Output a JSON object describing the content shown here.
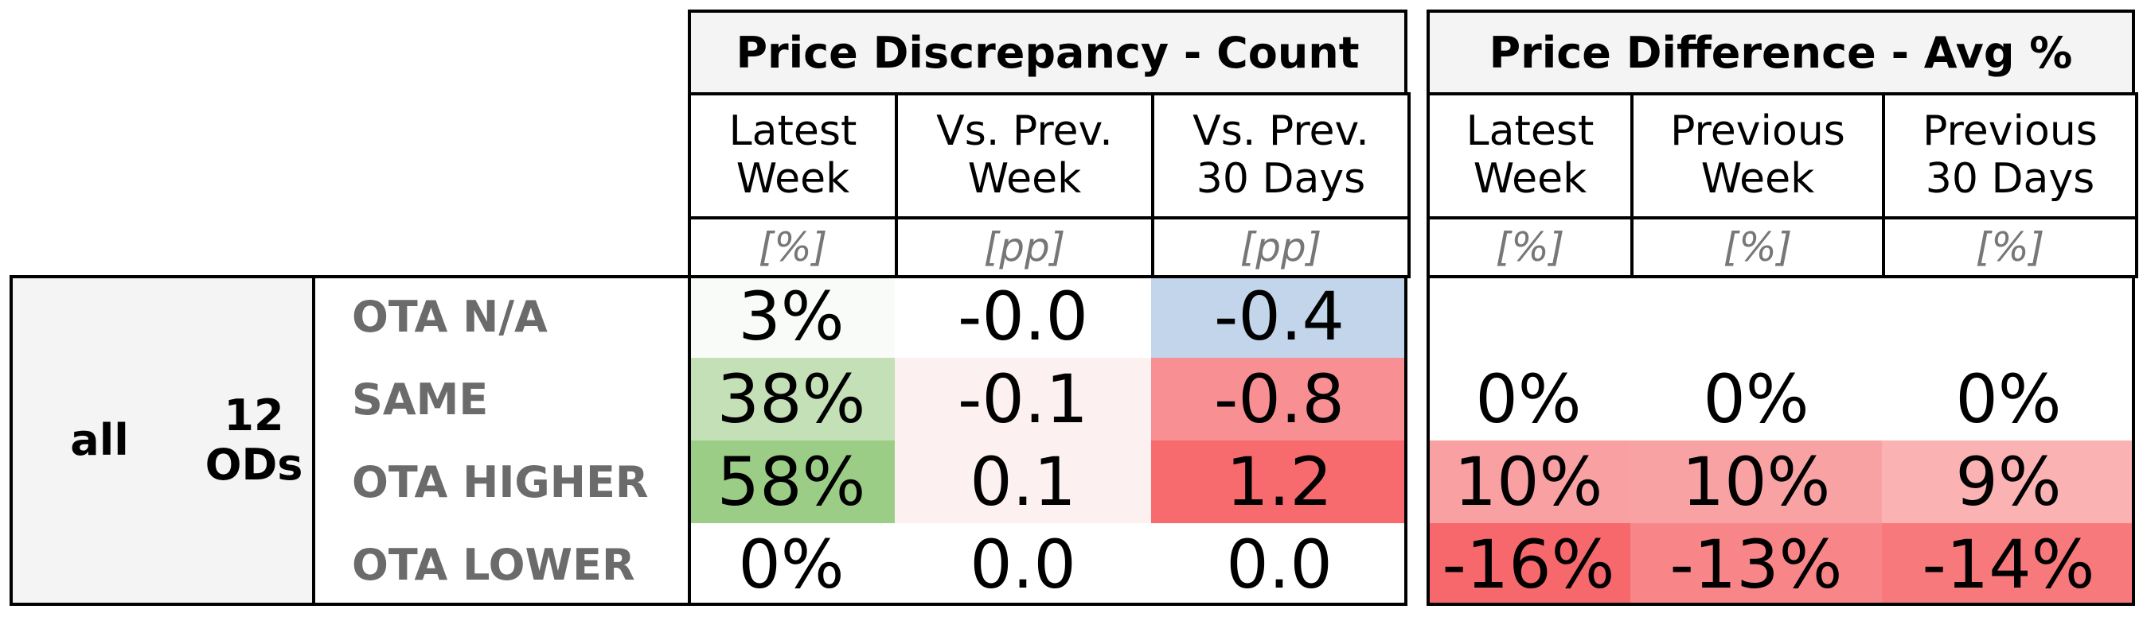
{
  "chart_data": {
    "type": "table",
    "group": {
      "label": "all",
      "subgroup": "12\nODs"
    },
    "rows": [
      "OTA N/A",
      "SAME",
      "OTA HIGHER",
      "OTA LOWER"
    ],
    "panels": [
      {
        "title": "Price Discrepancy - Count",
        "columns": [
          {
            "header": "Latest\nWeek",
            "unit": "[%]",
            "values": [
              "3%",
              "38%",
              "58%",
              "0%"
            ]
          },
          {
            "header": "Vs. Prev.\nWeek",
            "unit": "[pp]",
            "values": [
              "-0.0",
              "-0.1",
              "0.1",
              "0.0"
            ]
          },
          {
            "header": "Vs. Prev.\n30 Days",
            "unit": "[pp]",
            "values": [
              "-0.4",
              "-0.8",
              "1.2",
              "0.0"
            ]
          }
        ]
      },
      {
        "title": "Price Difference - Avg %",
        "columns": [
          {
            "header": "Latest\nWeek",
            "unit": "[%]",
            "values": [
              "",
              "0%",
              "10%",
              "-16%"
            ]
          },
          {
            "header": "Previous\nWeek",
            "unit": "[%]",
            "values": [
              "",
              "0%",
              "10%",
              "-13%"
            ]
          },
          {
            "header": "Previous\n30 Days",
            "unit": "[%]",
            "values": [
              "",
              "0%",
              "9%",
              "-14%"
            ]
          }
        ]
      }
    ],
    "cell_colors": [
      [
        [
          "#f9fbf8",
          "#ffffff",
          "#c3d5ea"
        ],
        [
          "#ffffff",
          "#ffffff",
          "#ffffff"
        ]
      ],
      [
        [
          "#c3e0b6",
          "#fdf0f0",
          "#f88f92"
        ],
        [
          "#ffffff",
          "#ffffff",
          "#ffffff"
        ]
      ],
      [
        [
          "#9ccd87",
          "#fdf0f0",
          "#f76b6e"
        ],
        [
          "#f9a0a2",
          "#f9a2a4",
          "#fab2b3"
        ]
      ],
      [
        [
          "#ffffff",
          "#ffffff",
          "#ffffff"
        ],
        [
          "#f6686b",
          "#f88587",
          "#f7797c"
        ]
      ]
    ]
  }
}
